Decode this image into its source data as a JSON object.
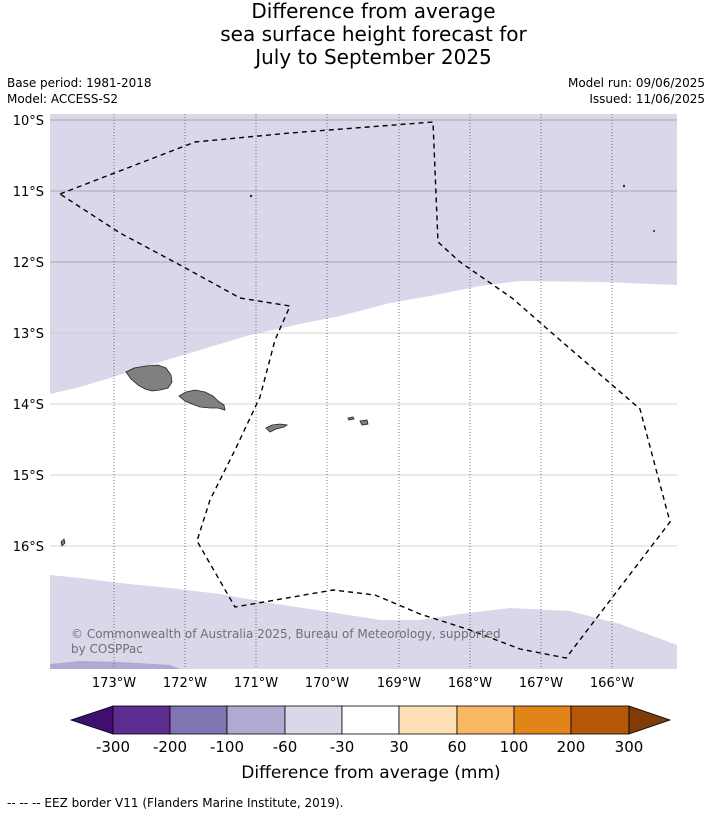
{
  "title": {
    "line1": "Difference from average",
    "line2": "sea surface height forecast for",
    "line3": "July to September 2025"
  },
  "meta": {
    "base_period": "Base period: 1981-2018",
    "model": "Model: ACCESS-S2",
    "model_run": "Model run: 09/06/2025",
    "issued": "Issued: 11/06/2025"
  },
  "map": {
    "lat_labels": [
      "10°S",
      "11°S",
      "12°S",
      "13°S",
      "14°S",
      "15°S",
      "16°S"
    ],
    "lon_labels": [
      "173°W",
      "172°W",
      "171°W",
      "170°W",
      "169°W",
      "168°W",
      "167°W",
      "166°W"
    ],
    "copyright_line1": "© Commonwealth of Australia 2025, Bureau of Meteorology, supported",
    "copyright_line2": "by COSPPac",
    "colors": {
      "band_-60_-30": "#d8d8ea",
      "band_-100_-60": "#b0aad2",
      "land": "#808080",
      "ocean_neutral": "#ffffff"
    }
  },
  "colorbar": {
    "ticks": [
      "-300",
      "-200",
      "-100",
      "-60",
      "-30",
      "30",
      "60",
      "100",
      "200",
      "300"
    ],
    "colors": [
      "#3f0f6f",
      "#5e2b91",
      "#8075b0",
      "#b0aad2",
      "#d8d8ea",
      "#ffffff",
      "#fde0b6",
      "#f9b663",
      "#e28418",
      "#b45807",
      "#7f3b08"
    ],
    "label": "Difference from average (mm)"
  },
  "footer": {
    "legend": "--  --  -- EEZ border V11 (Flanders Marine Institute, 2019)."
  }
}
